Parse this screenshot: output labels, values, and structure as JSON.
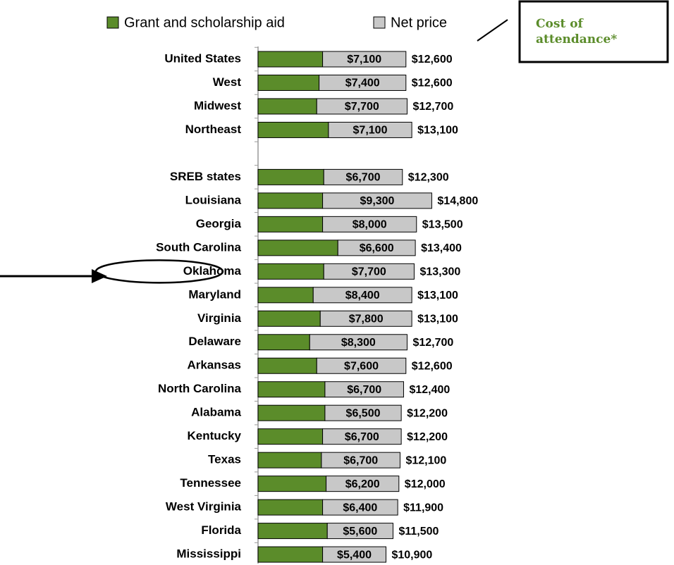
{
  "chart_data": {
    "type": "stacked-bar-horizontal",
    "categories": [
      "United States",
      "West",
      "Midwest",
      "Northeast",
      null,
      "SREB states",
      "Louisiana",
      "Georgia",
      "South Carolina",
      "Oklahoma",
      "Maryland",
      "Virginia",
      "Delaware",
      "Arkansas",
      "North Carolina",
      "Alabama",
      "Kentucky",
      "Texas",
      "Tennessee",
      "West Virginia",
      "Florida",
      "Mississippi"
    ],
    "series": [
      {
        "name": "Grant and scholarship aid",
        "color": "#5b8c2a",
        "values": [
          5500,
          5200,
          5000,
          6000,
          null,
          5600,
          5500,
          5500,
          6800,
          5600,
          4700,
          5300,
          4400,
          5000,
          5700,
          5700,
          5500,
          5400,
          5800,
          5500,
          5900,
          5500
        ]
      },
      {
        "name": "Net price",
        "color": "#c8c8c8",
        "values": [
          7100,
          7400,
          7700,
          7100,
          null,
          6700,
          9300,
          8000,
          6600,
          7700,
          8400,
          7800,
          8300,
          7600,
          6700,
          6500,
          6700,
          6700,
          6200,
          6400,
          5600,
          5400
        ],
        "value_labels": [
          "$7,100",
          "$7,400",
          "$7,700",
          "$7,100",
          null,
          "$6,700",
          "$9,300",
          "$8,000",
          "$6,600",
          "$7,700",
          "$8,400",
          "$7,800",
          "$8,300",
          "$7,600",
          "$6,700",
          "$6,500",
          "$6,700",
          "$6,700",
          "$6,200",
          "$6,400",
          "$5,600",
          "$5,400"
        ]
      }
    ],
    "totals": [
      12600,
      12600,
      12700,
      13100,
      null,
      12300,
      14800,
      13500,
      13400,
      13300,
      13100,
      13100,
      12700,
      12600,
      12400,
      12200,
      12200,
      12100,
      12000,
      11900,
      11500,
      10900
    ],
    "total_labels": [
      "$12,600",
      "$12,600",
      "$12,700",
      "$13,100",
      null,
      "$12,300",
      "$14,800",
      "$13,500",
      "$13,400",
      "$13,300",
      "$13,100",
      "$13,100",
      "$12,700",
      "$12,600",
      "$12,400",
      "$12,200",
      "$12,200",
      "$12,100",
      "$12,000",
      "$11,900",
      "$11,500",
      "$10,900"
    ],
    "annotation": "Cost of attendance*",
    "highlight": "Oklahoma",
    "xlim": [
      0,
      20000
    ]
  }
}
